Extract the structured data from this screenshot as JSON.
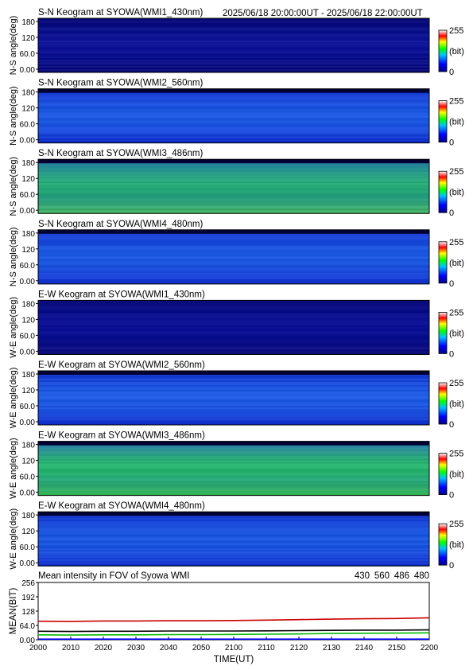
{
  "header": {
    "time_range": "2025/06/18 20:00:00UT - 2025/06/18 22:00:00UT"
  },
  "colorbar": {
    "max_label": "255",
    "min_label": "0",
    "unit_label": "(bit)"
  },
  "keograms": [
    {
      "title": "S-N Keogram at SYOWA(WMI1_430nm)",
      "ylabel": "N-S angle(deg)",
      "y_ticks": [
        "180",
        "120",
        "60.0",
        "0.00"
      ],
      "profile": "dark"
    },
    {
      "title": "S-N Keogram at SYOWA(WMI2_560nm)",
      "ylabel": "N-S angle(deg)",
      "y_ticks": [
        "180",
        "120",
        "60.0",
        "0.00"
      ],
      "profile": "blue_mid"
    },
    {
      "title": "S-N Keogram at SYOWA(WMI3_486nm)",
      "ylabel": "N-S angle(deg)",
      "y_ticks": [
        "180",
        "120",
        "60.0",
        "0.00"
      ],
      "profile": "green"
    },
    {
      "title": "S-N Keogram at SYOWA(WMI4_480nm)",
      "ylabel": "N-S angle(deg)",
      "y_ticks": [
        "180",
        "120",
        "60.0",
        "0.00"
      ],
      "profile": "blue_mid"
    },
    {
      "title": "E-W Keogram at SYOWA(WMI1_430nm)",
      "ylabel": "W-E angle(deg)",
      "y_ticks": [
        "180",
        "120",
        "60.0",
        "0.00"
      ],
      "profile": "dark"
    },
    {
      "title": "E-W Keogram at SYOWA(WMI2_560nm)",
      "ylabel": "W-E angle(deg)",
      "y_ticks": [
        "180",
        "120",
        "60.0",
        "0.00"
      ],
      "profile": "blue_mid"
    },
    {
      "title": "E-W Keogram at SYOWA(WMI3_486nm)",
      "ylabel": "W-E angle(deg)",
      "y_ticks": [
        "180",
        "120",
        "60.0",
        "0.00"
      ],
      "profile": "green_strong"
    },
    {
      "title": "E-W Keogram at SYOWA(WMI4_480nm)",
      "ylabel": "W-E angle(deg)",
      "y_ticks": [
        "180",
        "120",
        "60.0",
        "0.00"
      ],
      "profile": "blue_mid"
    }
  ],
  "chart_data": {
    "type": "line",
    "title": "Mean intensity in FOV of Syowa WMI",
    "xlabel": "TIME(UT)",
    "ylabel": "MEAN(BIT)",
    "x_ticks": [
      "2000",
      "2010",
      "2020",
      "2030",
      "2040",
      "2050",
      "2100",
      "2110",
      "2120",
      "2130",
      "2140",
      "2150",
      "2200"
    ],
    "y_ticks": [
      "256",
      "192",
      "128",
      "64.0",
      "0.00"
    ],
    "ylim": [
      0,
      256
    ],
    "legend_position": "top-right",
    "x": [
      0,
      10,
      20,
      30,
      40,
      50,
      60,
      70,
      80,
      90,
      100,
      110,
      120
    ],
    "series": [
      {
        "name": "430",
        "color": "#0000ff",
        "values": [
          3,
          3,
          3,
          3,
          3,
          3,
          3,
          3,
          3,
          3,
          3,
          3,
          3
        ]
      },
      {
        "name": "560",
        "color": "#00bb00",
        "values": [
          22,
          21,
          22,
          22,
          23,
          23,
          24,
          25,
          26,
          28,
          29,
          30,
          31
        ]
      },
      {
        "name": "486",
        "color": "#cc0000",
        "values": [
          83,
          82,
          84,
          84,
          85,
          85,
          86,
          88,
          90,
          92,
          94,
          95,
          98
        ]
      },
      {
        "name": "480",
        "color": "#000000",
        "values": [
          38,
          37,
          38,
          38,
          39,
          39,
          39,
          40,
          41,
          42,
          43,
          43,
          44
        ]
      }
    ]
  }
}
